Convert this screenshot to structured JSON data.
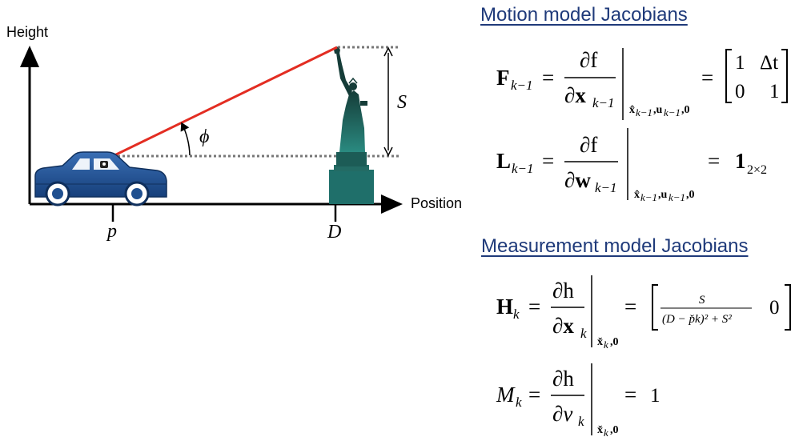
{
  "diagram": {
    "y_axis_label": "Height",
    "x_axis_label": "Position",
    "car_position_label": "p",
    "landmark_position_label": "D",
    "height_label": "S",
    "angle_label": "ϕ"
  },
  "motion_section": {
    "title": "Motion model Jacobians"
  },
  "measurement_section": {
    "title": "Measurement model Jacobians"
  },
  "equations": {
    "F": {
      "lhs": "F",
      "lhs_sub": "k−1",
      "num": "∂f",
      "den": "∂x",
      "den_sub": "k−1",
      "eval": "x̂",
      "eval_rest": "k−1,uk−1,0",
      "matrix": [
        "1",
        "Δt",
        "0",
        "1"
      ]
    },
    "L": {
      "lhs": "L",
      "lhs_sub": "k−1",
      "num": "∂f",
      "den": "∂w",
      "den_sub": "k−1",
      "result": "1",
      "result_sub": "2×2"
    },
    "H": {
      "lhs": "H",
      "lhs_sub": "k",
      "num": "∂h",
      "den": "∂x",
      "den_sub": "k",
      "inner_num": "S",
      "inner_den": "(D − p̌k)² + S²",
      "second": "0"
    },
    "M": {
      "lhs": "M",
      "lhs_sub": "k",
      "num": "∂h",
      "den": "∂v",
      "den_sub": "k",
      "result": "1"
    }
  },
  "colors": {
    "axis": "#000000",
    "sight_line": "#e32d22",
    "car_body": "#1f4f8f",
    "statue": "#1f6f6a",
    "title": "#1f3a7a"
  }
}
